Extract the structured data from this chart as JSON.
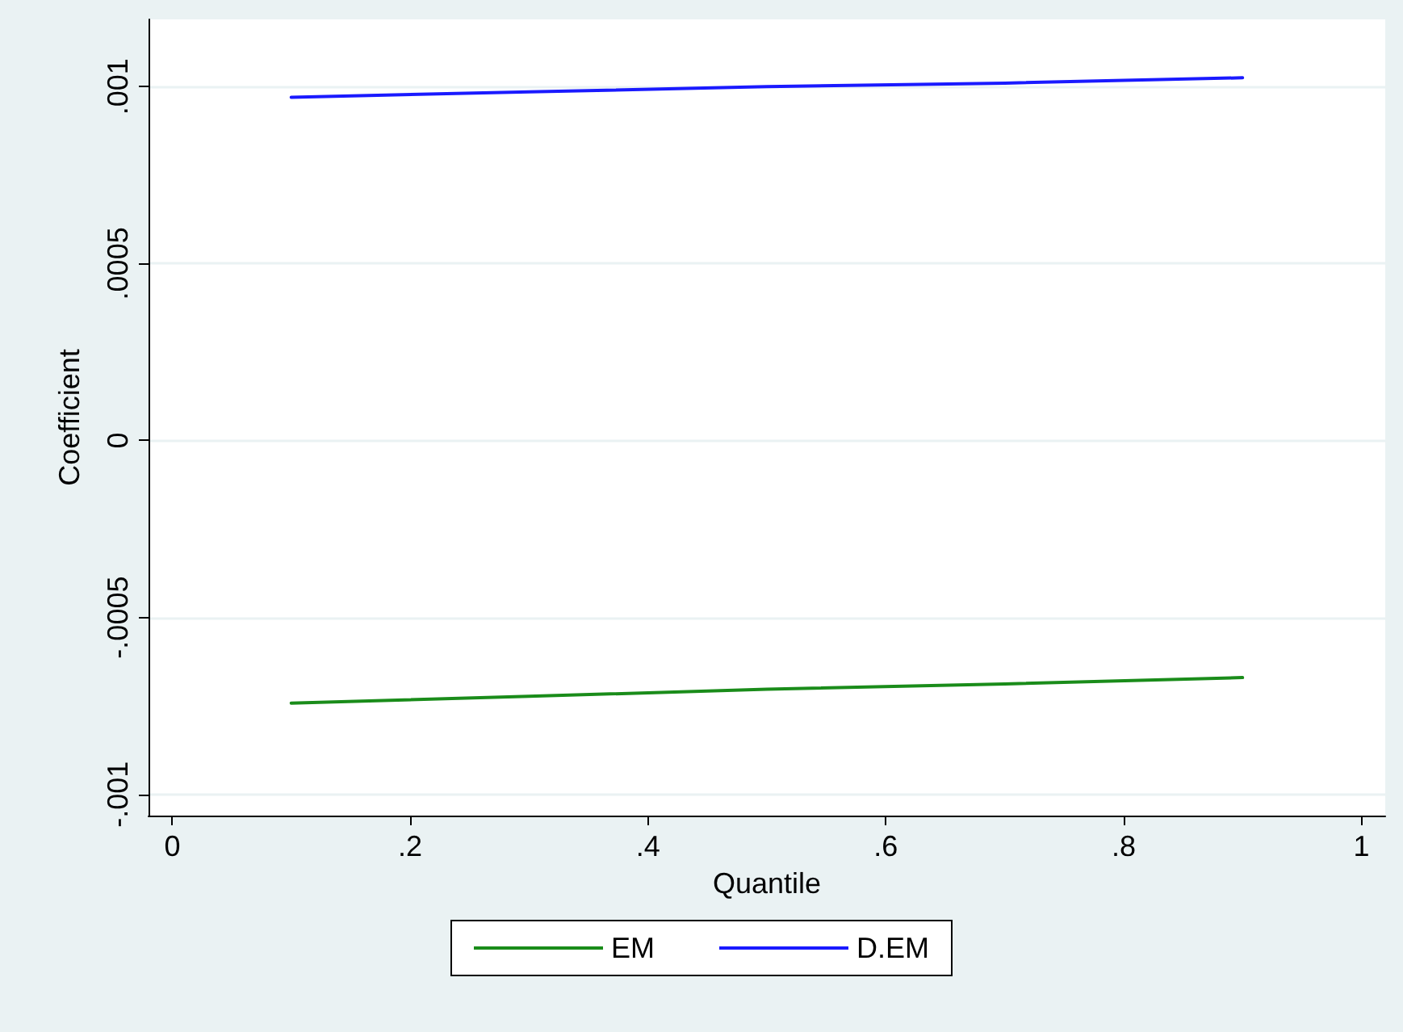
{
  "chart_data": {
    "type": "line",
    "xlabel": "Quantile",
    "ylabel": "Coefficient",
    "x": [
      0.1,
      0.3,
      0.5,
      0.7,
      0.9
    ],
    "series": [
      {
        "name": "EM",
        "color": "#1a8c1a",
        "values": [
          -0.000742,
          -0.000723,
          -0.000703,
          -0.000688,
          -0.00067
        ]
      },
      {
        "name": "D.EM",
        "color": "#1a1aff",
        "values": [
          0.00097,
          0.000985,
          0.001,
          0.00101,
          0.001025
        ]
      }
    ],
    "xlim": [
      -0.02,
      1.02
    ],
    "ylim": [
      -0.00106,
      0.00119
    ],
    "xticks": [
      0,
      {
        "value": 0.2,
        "label": ".2"
      },
      {
        "value": 0.4,
        "label": ".4"
      },
      {
        "value": 0.6,
        "label": ".6"
      },
      {
        "value": 0.8,
        "label": ".8"
      },
      1
    ],
    "yticks": [
      {
        "value": -0.001,
        "label": "-.001"
      },
      {
        "value": -0.0005,
        "label": "-.0005"
      },
      0,
      {
        "value": 0.0005,
        "label": ".0005"
      },
      {
        "value": 0.001,
        "label": ".001"
      }
    ],
    "grid": "y",
    "legend": "bottom",
    "marker": "none",
    "line_style": "solid"
  }
}
